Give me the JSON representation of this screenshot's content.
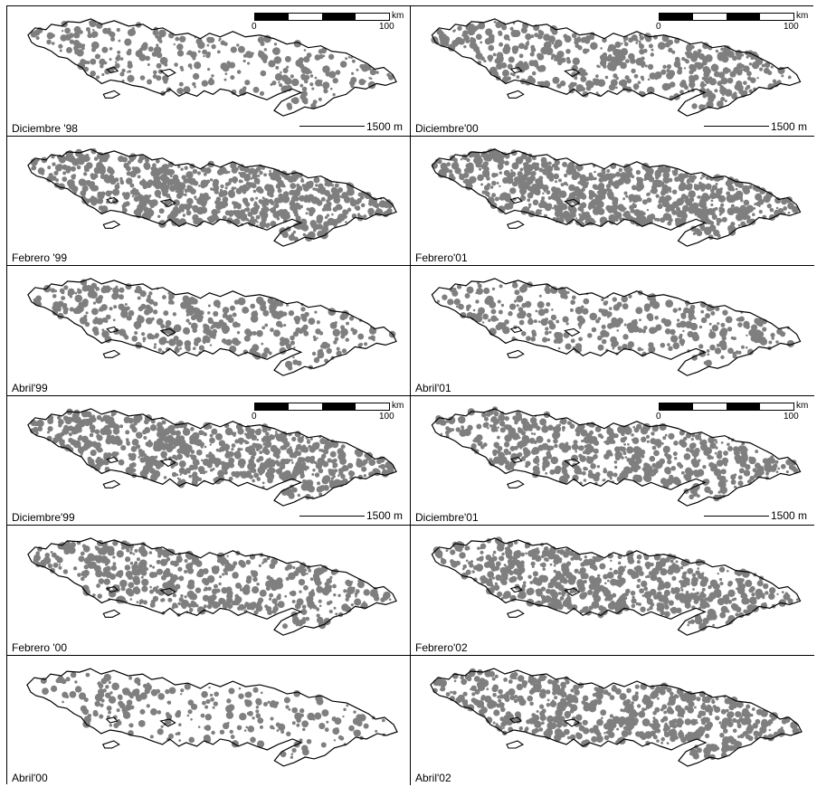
{
  "panels": [
    {
      "label": "Diciembre '98",
      "density": 0.35
    },
    {
      "label": "Diciembre'00",
      "density": 0.55
    },
    {
      "label": "Febrero '99",
      "density": 0.85
    },
    {
      "label": "Febrero'01",
      "density": 0.88
    },
    {
      "label": "Abril'99",
      "density": 0.45
    },
    {
      "label": "Abril'01",
      "density": 0.4
    },
    {
      "label": "Diciembre'99",
      "density": 0.8
    },
    {
      "label": "Diciembre'01",
      "density": 0.65
    },
    {
      "label": "Febrero '00",
      "density": 0.6
    },
    {
      "label": "Febrero'02",
      "density": 0.75
    },
    {
      "label": "Abril'00",
      "density": 0.28
    },
    {
      "label": "Abril'02",
      "density": 0.7
    }
  ],
  "scale": {
    "zero": "0",
    "max": "100",
    "unit": "km"
  },
  "elevation": {
    "text": "1500 m"
  },
  "colors": {
    "cover": "#7f7f7f",
    "outline": "#000000"
  }
}
